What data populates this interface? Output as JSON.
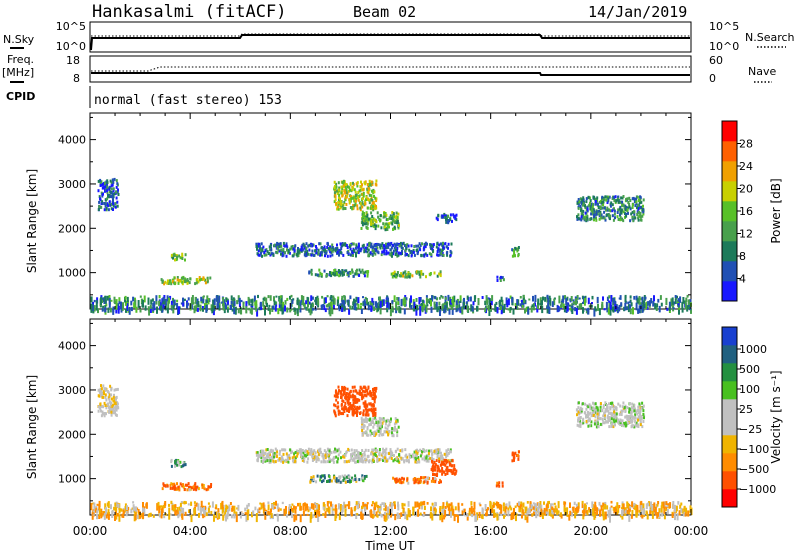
{
  "header": {
    "station": "Hankasalmi (fitACF)",
    "beam": "Beam 02",
    "date": "14/Jan/2019"
  },
  "summary_panels": {
    "nsky": {
      "label": "N.Sky",
      "ticks_left": [
        "10^5",
        "10^0"
      ],
      "ticks_right": [
        "10^5",
        "10^0"
      ],
      "right_label": "N.Search"
    },
    "freq": {
      "label_line1": "Freq.",
      "label_line2": "[MHz]",
      "ticks_left": [
        "18",
        "8"
      ],
      "ticks_right": [
        "60",
        "0"
      ],
      "right_label": "Nave"
    },
    "cpid": {
      "label": "CPID",
      "text": "normal (fast stereo) 153"
    }
  },
  "colors": {
    "power_scale": [
      "#1818ff",
      "#2050b4",
      "#1c7a5a",
      "#48a04c",
      "#58c028",
      "#c8d000",
      "#f0a000",
      "#ff6000",
      "#ff0000"
    ],
    "velocity_scale": [
      "#ff0000",
      "#ff5000",
      "#ff8c00",
      "#f0b400",
      "#c0c0c0",
      "#c0c0c0",
      "#48c020",
      "#249040",
      "#206080",
      "#1840d0"
    ]
  },
  "chart_data": [
    {
      "type": "heatmap",
      "title": "",
      "quantity": "Power",
      "xlabel": "",
      "ylabel": "Slant Range [km]",
      "xlim_hours": [
        0,
        24
      ],
      "ylim_km": [
        180,
        4600
      ],
      "x_ticks": [
        "00:00",
        "04:00",
        "08:00",
        "12:00",
        "16:00",
        "20:00",
        "00:00"
      ],
      "y_ticks": [
        1000,
        2000,
        3000,
        4000
      ],
      "colorbar": {
        "label": "Power [dB]",
        "ticks": [
          "4",
          "8",
          "12",
          "16",
          "20",
          "24",
          "28"
        ],
        "range": [
          0,
          30
        ]
      },
      "echo_regions": [
        {
          "t": [
            0.3,
            1.1
          ],
          "r": [
            2450,
            3150
          ],
          "v": 6
        },
        {
          "t": [
            3.2,
            3.8
          ],
          "r": [
            1300,
            1450
          ],
          "v": 14
        },
        {
          "t": [
            2.8,
            4.8
          ],
          "r": [
            780,
            930
          ],
          "v": 16
        },
        {
          "t": [
            6.6,
            14.4
          ],
          "r": [
            1400,
            1700
          ],
          "v": 6
        },
        {
          "t": [
            8.7,
            11.1
          ],
          "r": [
            950,
            1100
          ],
          "v": 9
        },
        {
          "t": [
            9.7,
            11.4
          ],
          "r": [
            2450,
            3100
          ],
          "v": 17
        },
        {
          "t": [
            10.8,
            12.3
          ],
          "r": [
            2000,
            2400
          ],
          "v": 13
        },
        {
          "t": [
            12.0,
            14.0
          ],
          "r": [
            930,
            1060
          ],
          "v": 15
        },
        {
          "t": [
            13.8,
            14.6
          ],
          "r": [
            2150,
            2350
          ],
          "v": 5
        },
        {
          "t": [
            16.8,
            17.1
          ],
          "r": [
            1400,
            1650
          ],
          "v": 10
        },
        {
          "t": [
            16.2,
            16.5
          ],
          "r": [
            850,
            950
          ],
          "v": 6
        },
        {
          "t": [
            19.4,
            22.1
          ],
          "r": [
            2200,
            2750
          ],
          "v": 9
        },
        {
          "t": [
            0,
            24
          ],
          "r": [
            180,
            500
          ],
          "v": 8
        }
      ]
    },
    {
      "type": "heatmap",
      "title": "",
      "quantity": "Velocity",
      "xlabel": "Time UT",
      "ylabel": "Slant Range [km]",
      "xlim_hours": [
        0,
        24
      ],
      "ylim_km": [
        180,
        4600
      ],
      "x_ticks": [
        "00:00",
        "04:00",
        "08:00",
        "12:00",
        "16:00",
        "20:00",
        "00:00"
      ],
      "y_ticks": [
        1000,
        2000,
        3000,
        4000
      ],
      "colorbar": {
        "label": "Velocity [m s⁻¹]",
        "ticks": [
          "1000",
          "500",
          "100",
          "25",
          "−25",
          "−100",
          "−500",
          "−1000"
        ],
        "range": [
          -1000,
          1000
        ]
      },
      "echo_regions": [
        {
          "t": [
            0.3,
            1.1
          ],
          "r": [
            2450,
            3150
          ],
          "v": -10
        },
        {
          "t": [
            3.2,
            3.8
          ],
          "r": [
            1300,
            1450
          ],
          "v": 80
        },
        {
          "t": [
            2.8,
            4.8
          ],
          "r": [
            780,
            930
          ],
          "v": -120
        },
        {
          "t": [
            6.6,
            14.4
          ],
          "r": [
            1400,
            1700
          ],
          "v": 0
        },
        {
          "t": [
            8.7,
            11.1
          ],
          "r": [
            950,
            1100
          ],
          "v": 60
        },
        {
          "t": [
            9.7,
            11.4
          ],
          "r": [
            2450,
            3100
          ],
          "v": -250
        },
        {
          "t": [
            10.8,
            12.3
          ],
          "r": [
            2000,
            2400
          ],
          "v": 0
        },
        {
          "t": [
            12.0,
            14.0
          ],
          "r": [
            930,
            1060
          ],
          "v": -110
        },
        {
          "t": [
            13.6,
            14.6
          ],
          "r": [
            1100,
            1450
          ],
          "v": -300
        },
        {
          "t": [
            16.8,
            17.1
          ],
          "r": [
            1400,
            1650
          ],
          "v": -150
        },
        {
          "t": [
            16.2,
            16.5
          ],
          "r": [
            850,
            950
          ],
          "v": -200
        },
        {
          "t": [
            19.4,
            22.1
          ],
          "r": [
            2200,
            2750
          ],
          "v": 5
        },
        {
          "t": [
            0,
            24
          ],
          "r": [
            180,
            500
          ],
          "v": -40
        }
      ]
    }
  ]
}
